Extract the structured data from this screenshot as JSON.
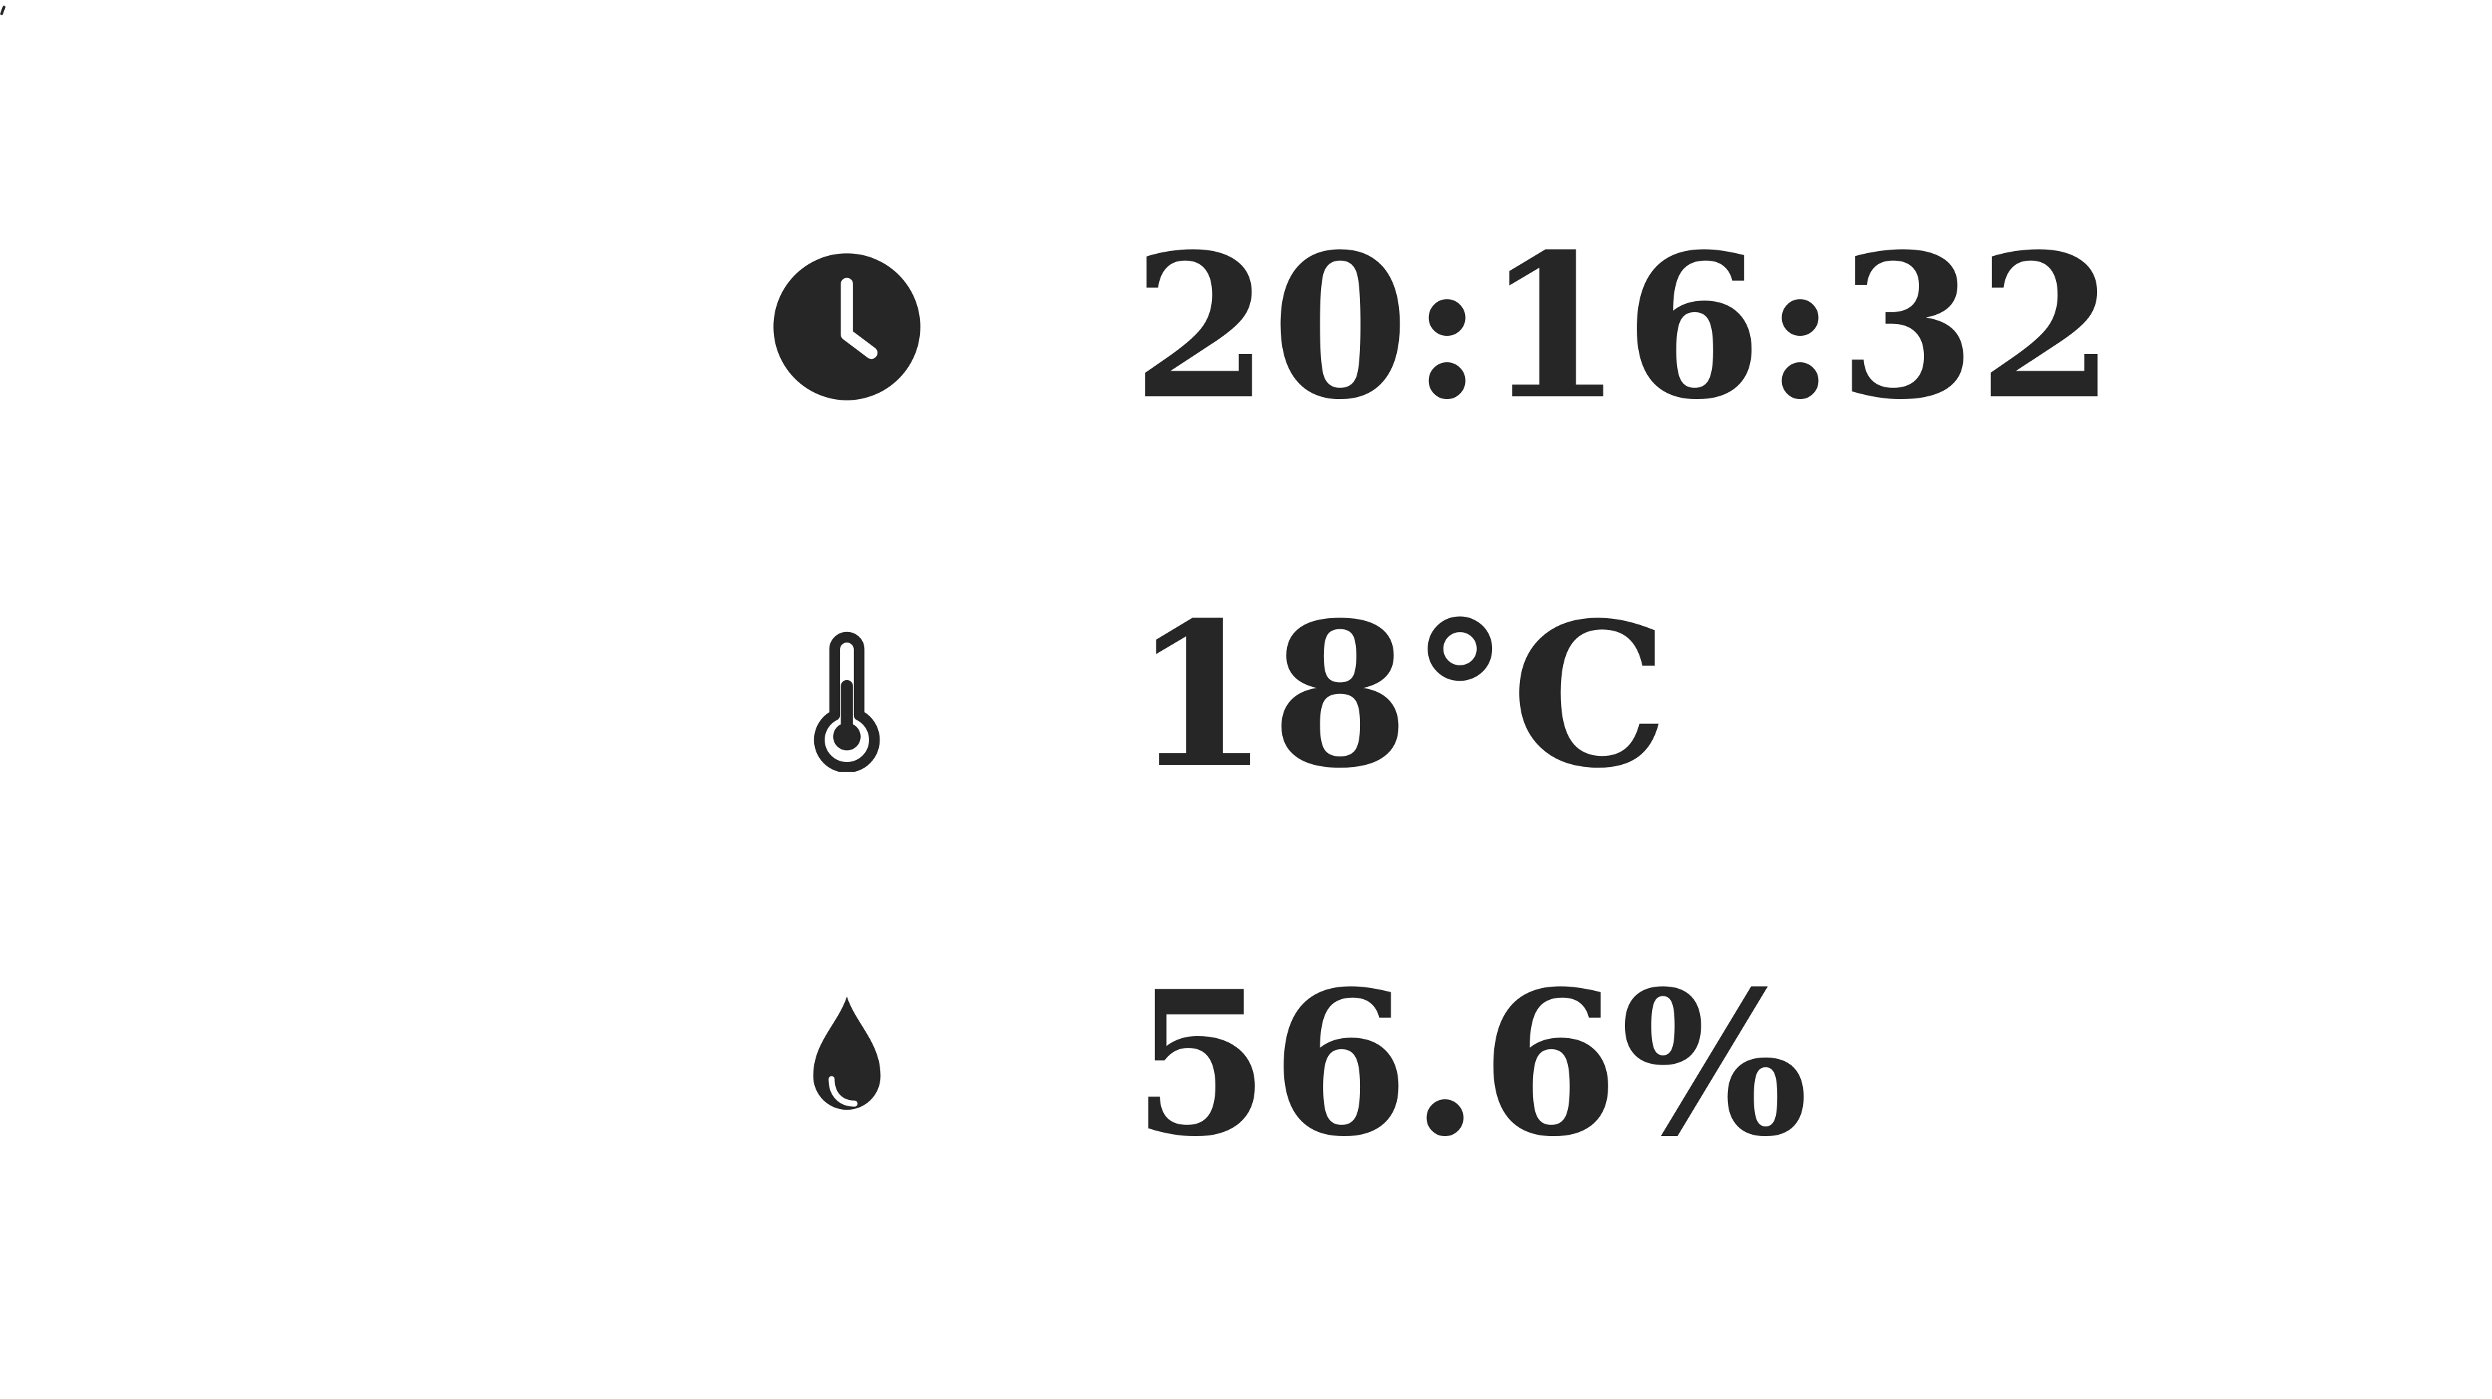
{
  "readings": {
    "time": {
      "icon": "clock-icon",
      "value": "20:16:32"
    },
    "temperature": {
      "icon": "thermometer-icon",
      "value": "18°C"
    },
    "humidity": {
      "icon": "water-drop-icon",
      "value": "56.6%"
    }
  },
  "colors": {
    "text": "#262626",
    "background": "#ffffff"
  }
}
